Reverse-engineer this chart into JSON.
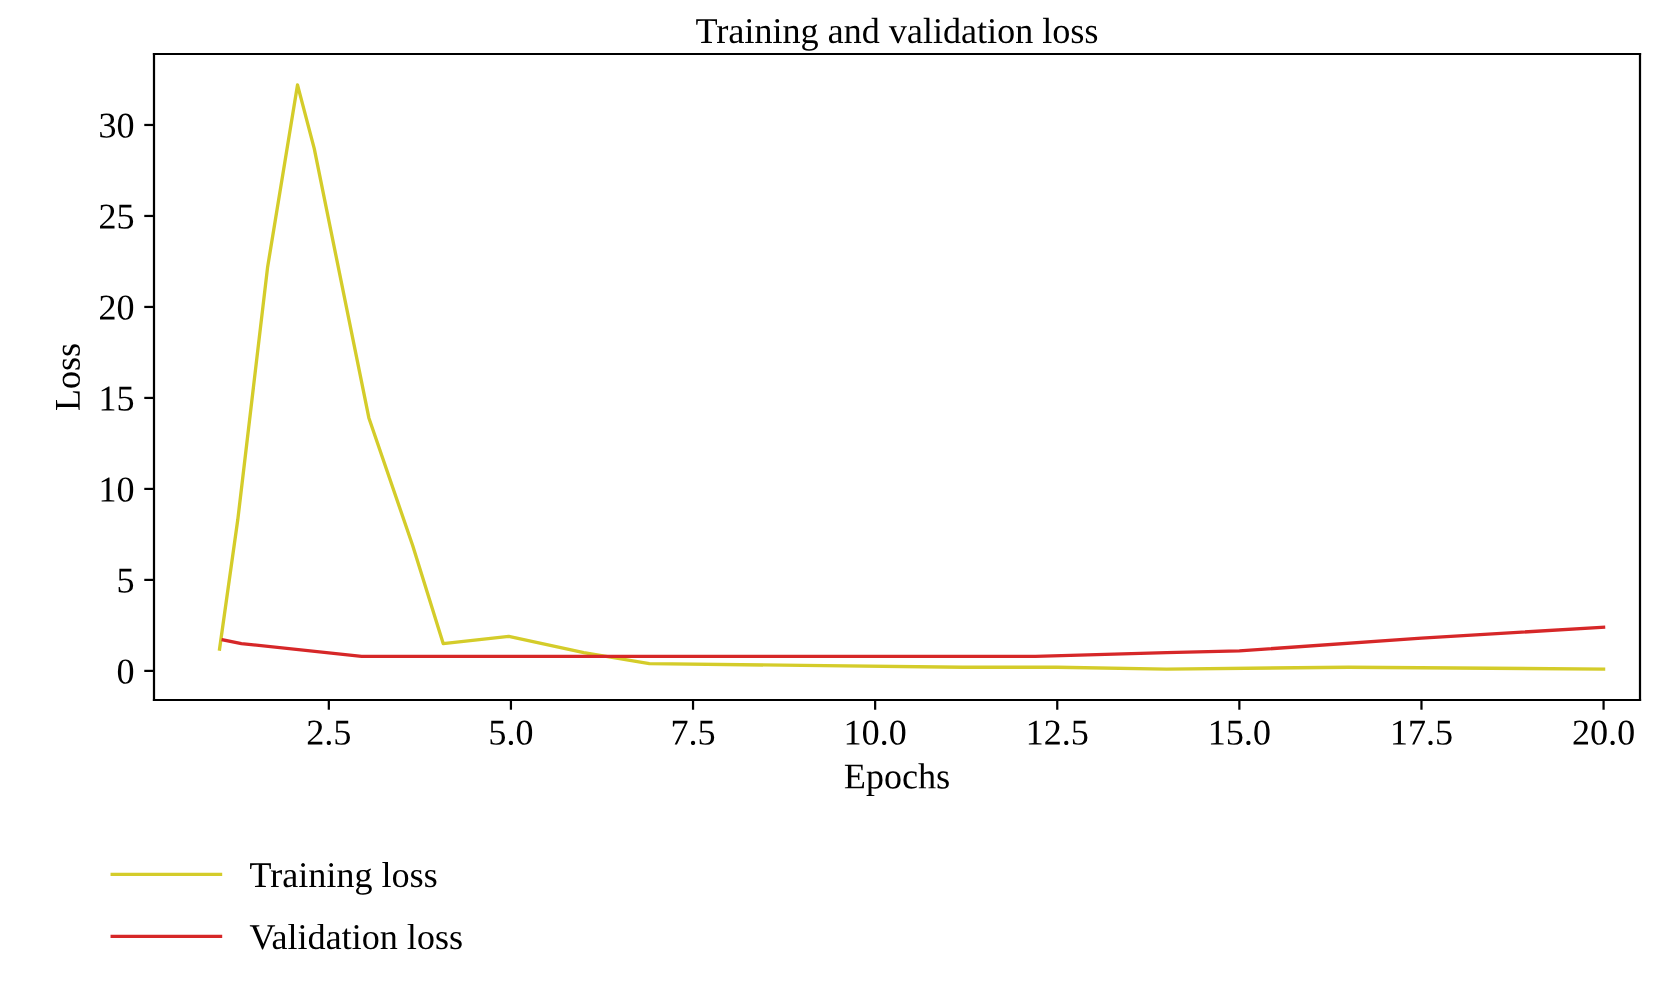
{
  "chart_data": {
    "type": "line",
    "title": "Training and validation loss",
    "xlabel": "Epochs",
    "ylabel": "Loss",
    "xlim": [
      0.1,
      20.5
    ],
    "ylim": [
      -1.6,
      33.9
    ],
    "xticks": [
      {
        "value": 2.5,
        "label": "2.5"
      },
      {
        "value": 5,
        "label": "5.0"
      },
      {
        "value": 7.5,
        "label": "7.5"
      },
      {
        "value": 10,
        "label": "10.0"
      },
      {
        "value": 12.5,
        "label": "12.5"
      },
      {
        "value": 15,
        "label": "15.0"
      },
      {
        "value": 17.5,
        "label": "17.5"
      },
      {
        "value": 20,
        "label": "20.0"
      }
    ],
    "yticks": [
      0,
      5,
      10,
      15,
      20,
      25,
      30
    ],
    "grid": false,
    "legend": "bottom left",
    "series": [
      {
        "name": "Training loss",
        "color": "#d4cc2a",
        "x": [
          1,
          1.25,
          1.66,
          2.07,
          2.3,
          3.05,
          3.65,
          4.07,
          4.97,
          6.0,
          6.9,
          9.0,
          11.2,
          12.5,
          14.0,
          16.5,
          20.0
        ],
        "values": [
          1.2,
          8.3,
          22.2,
          32.2,
          28.7,
          13.9,
          6.9,
          1.5,
          1.9,
          1.0,
          0.4,
          0.3,
          0.2,
          0.2,
          0.1,
          0.2,
          0.1
        ]
      },
      {
        "name": "Validation loss",
        "color": "#d62728",
        "x": [
          1.05,
          1.3,
          2.95,
          7.0,
          9.0,
          12.2,
          14.0,
          15.0,
          17.5,
          20.0
        ],
        "values": [
          1.7,
          1.5,
          0.8,
          0.8,
          0.8,
          0.8,
          1.0,
          1.1,
          1.8,
          2.4
        ]
      }
    ]
  }
}
